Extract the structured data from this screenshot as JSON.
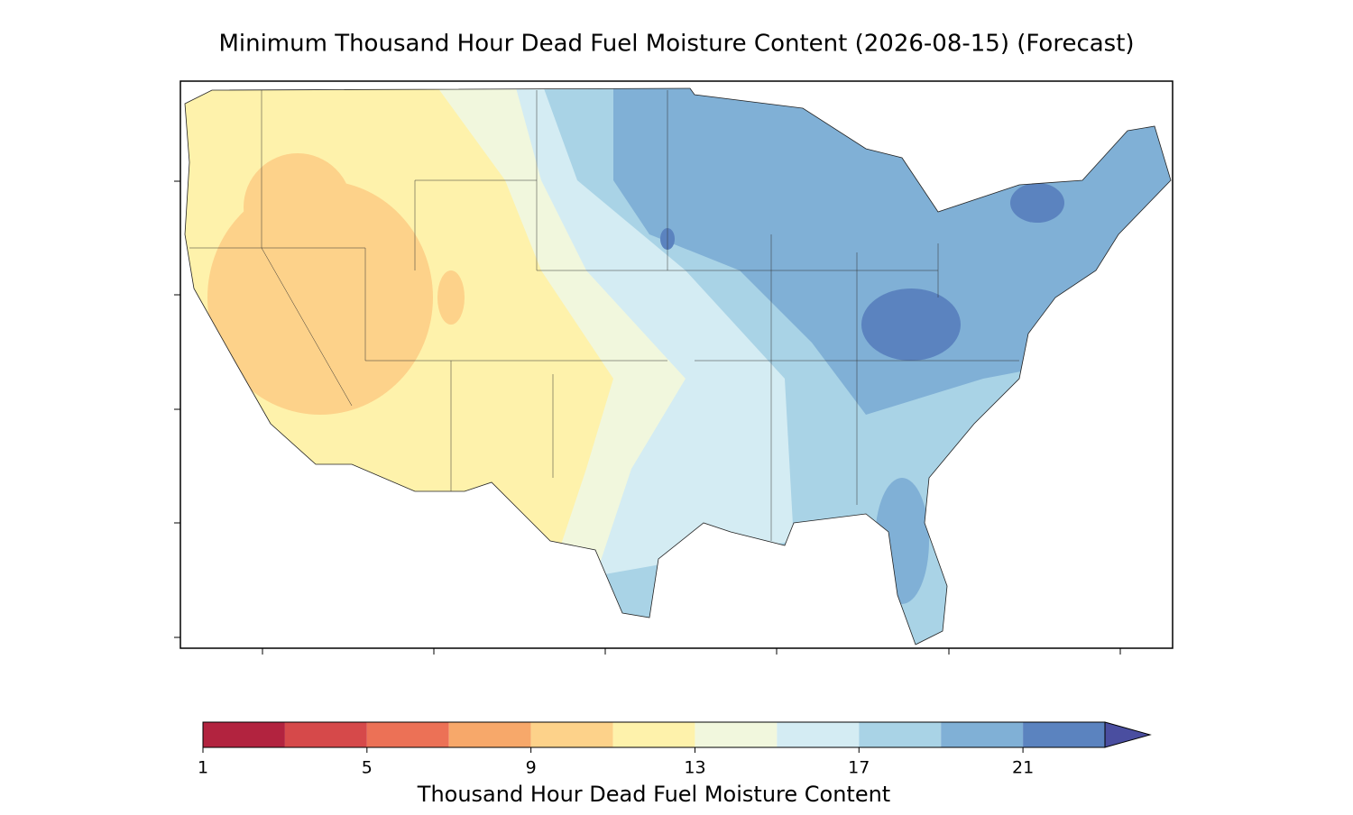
{
  "title": "Minimum Thousand Hour Dead Fuel Moisture Content (2026-08-15) (Forecast)",
  "colorbar": {
    "label": "Thousand Hour Dead Fuel Moisture Content",
    "levels": [
      1,
      3,
      5,
      7,
      9,
      11,
      13,
      15,
      17,
      19,
      21,
      23
    ],
    "colors": [
      "#b2233f",
      "#d6494a",
      "#ec7156",
      "#f7a86a",
      "#fdd28a",
      "#fef2ab",
      "#f1f7dd",
      "#d4ecf3",
      "#a9d3e6",
      "#80b0d6",
      "#5b83bf"
    ],
    "extend": "max",
    "extend_color": "#4a4ea0",
    "ticks": [
      1,
      5,
      9,
      13,
      17,
      21
    ]
  }
}
